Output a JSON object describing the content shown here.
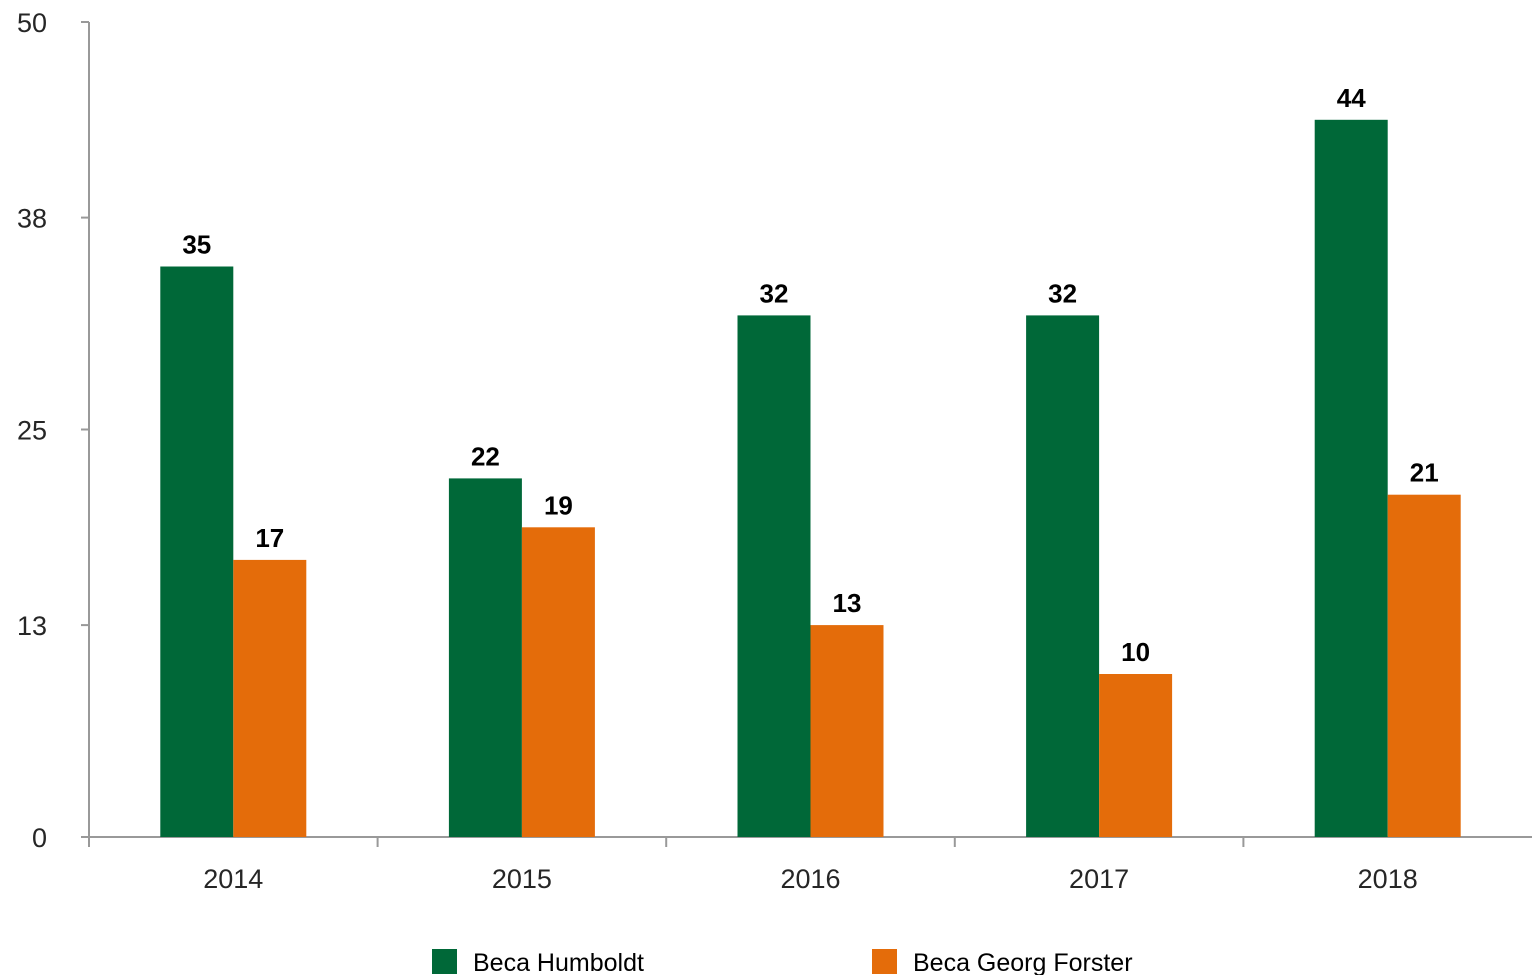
{
  "chart_data": {
    "type": "bar",
    "title": "",
    "xlabel": "",
    "ylabel": "",
    "categories": [
      "2014",
      "2015",
      "2016",
      "2017",
      "2018"
    ],
    "series": [
      {
        "name": "Beca Humboldt",
        "color": "#006838",
        "values": [
          35,
          22,
          32,
          32,
          44
        ]
      },
      {
        "name": "Beca Georg Forster",
        "color": "#E46C0A",
        "values": [
          17,
          19,
          13,
          10,
          21
        ]
      }
    ],
    "ylim": [
      0,
      50
    ],
    "yticks": [
      0,
      13,
      25,
      38,
      50
    ],
    "grid": false,
    "legend": "bottom",
    "axis_color": "#999999"
  }
}
